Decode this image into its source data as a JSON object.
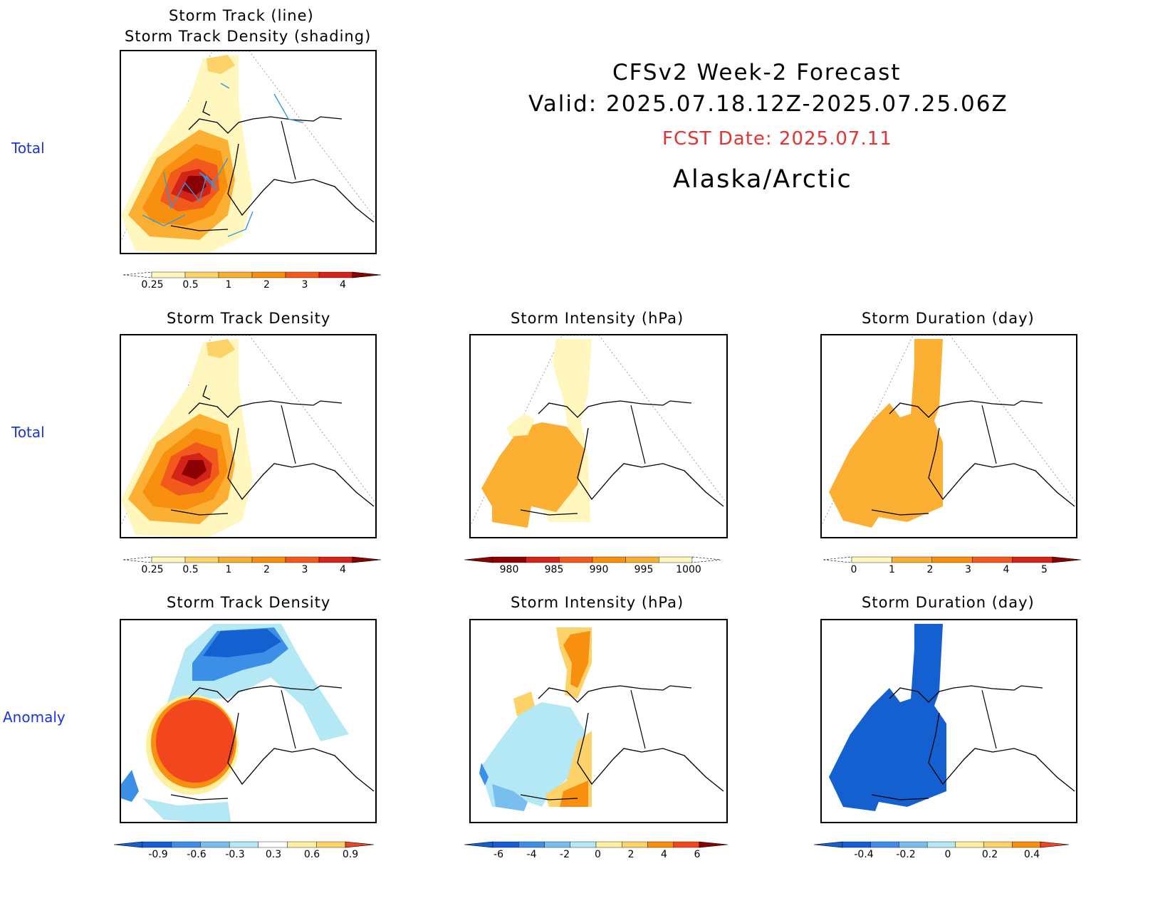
{
  "header": {
    "title": "CFSv2 Week-2 Forecast",
    "valid": "Valid: 2025.07.18.12Z-2025.07.25.06Z",
    "fcst_date": "FCST Date: 2025.07.11",
    "region": "Alaska/Arctic"
  },
  "row_labels": {
    "top": "Total",
    "middle": "Total",
    "bottom": "Anomaly"
  },
  "panels": {
    "top_density_title_1": "Storm Track (line)",
    "top_density_title_2": "Storm Track Density (shading)",
    "mid_density_title": "Storm Track Density",
    "mid_intensity_title": "Storm Intensity (hPa)",
    "mid_duration_title": "Storm Duration (day)",
    "bot_density_title": "Storm Track Density",
    "bot_intensity_title": "Storm Intensity (hPa)",
    "bot_duration_title": "Storm Duration (day)"
  },
  "colors": {
    "density": [
      "#fff7bd",
      "#fdd269",
      "#fbb034",
      "#f88f0f",
      "#f2591d",
      "#d42318",
      "#8b0000"
    ],
    "intensity": [
      "#8b0000",
      "#d42318",
      "#f2591d",
      "#f88f0f",
      "#fbb034",
      "#fff7bd"
    ],
    "duration": [
      "#fff7bd",
      "#fbb034",
      "#f88f0f",
      "#f2591d",
      "#d42318",
      "#8b0000"
    ],
    "anomaly": [
      "#1460d0",
      "#3c8fe6",
      "#78bff0",
      "#b4e8f4",
      "#ffffff",
      "#fff0a0",
      "#fdd269",
      "#f88f0f",
      "#f2461e",
      "#c81e14"
    ],
    "track_line": "#3399dd"
  },
  "colorbars": {
    "density_ticks": [
      "0.25",
      "0.5",
      "1",
      "2",
      "3",
      "4"
    ],
    "intensity_ticks": [
      "980",
      "985",
      "990",
      "995",
      "1000"
    ],
    "duration_ticks": [
      "0",
      "1",
      "2",
      "3",
      "4",
      "5"
    ],
    "density_anom_ticks": [
      "-0.9",
      "-0.6",
      "-0.3",
      "0.3",
      "0.6",
      "0.9"
    ],
    "intensity_anom_ticks": [
      "-6",
      "-4",
      "-2",
      "0",
      "2",
      "4",
      "6"
    ],
    "duration_anom_ticks": [
      "-0.4",
      "-0.2",
      "0",
      "0.2",
      "0.4"
    ]
  }
}
